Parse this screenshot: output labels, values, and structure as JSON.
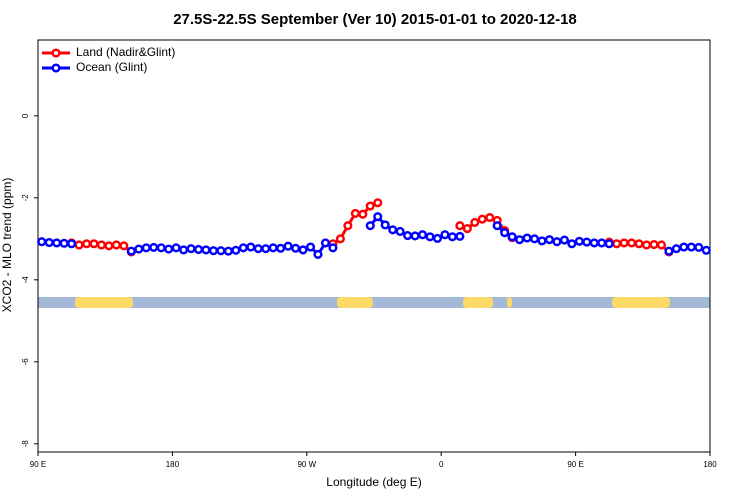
{
  "chart_data": {
    "type": "line",
    "title": "27.5S-22.5S September (Ver 10)   2015-01-01 to 2020-12-18",
    "x_label": "Longitude (deg E)",
    "y_label": "XCO2 - MLO trend (ppm)",
    "xlim": [
      90,
      540
    ],
    "ylim": [
      -8.2,
      1.85
    ],
    "xticks": [
      {
        "value": 90,
        "label": "90 E"
      },
      {
        "value": 180,
        "label": "180"
      },
      {
        "value": 270,
        "label": "90 W"
      },
      {
        "value": 360,
        "label": "0"
      },
      {
        "value": 450,
        "label": "90 E"
      },
      {
        "value": 540,
        "label": "180"
      }
    ],
    "yticks": [
      0,
      -2,
      -4,
      -6,
      -8
    ],
    "legend": "top-left",
    "x": [
      92.5,
      97.5,
      102.5,
      107.5,
      112.5,
      117.5,
      122.5,
      127.5,
      132.5,
      137.5,
      142.5,
      147.5,
      152.5,
      157.5,
      162.5,
      167.5,
      172.5,
      177.5,
      182.5,
      187.5,
      192.5,
      197.5,
      202.5,
      207.5,
      212.5,
      217.5,
      222.5,
      227.5,
      232.5,
      237.5,
      242.5,
      247.5,
      252.5,
      257.5,
      262.5,
      267.5,
      272.5,
      277.5,
      282.5,
      287.5,
      292.5,
      297.5,
      302.5,
      307.5,
      312.5,
      317.5,
      322.5,
      327.5,
      332.5,
      337.5,
      342.5,
      347.5,
      352.5,
      357.5,
      362.5,
      367.5,
      372.5,
      377.5,
      382.5,
      387.5,
      392.5,
      397.5,
      402.5,
      407.5,
      412.5,
      417.5,
      422.5,
      427.5,
      432.5,
      437.5,
      442.5,
      447.5,
      452.5,
      457.5,
      462.5,
      467.5,
      472.5,
      477.5,
      482.5,
      487.5,
      492.5,
      497.5,
      502.5,
      507.5,
      512.5,
      517.5,
      522.5,
      527.5,
      532.5,
      537.5
    ],
    "series": [
      {
        "name": "Land (Nadir&Glint)",
        "color": "#ff0000",
        "values": [
          null,
          null,
          null,
          null,
          -3.1,
          -3.15,
          -3.12,
          -3.12,
          -3.15,
          -3.17,
          -3.15,
          -3.17,
          -3.32,
          null,
          null,
          null,
          null,
          null,
          null,
          null,
          null,
          null,
          null,
          null,
          null,
          null,
          null,
          null,
          null,
          null,
          null,
          null,
          null,
          null,
          null,
          null,
          null,
          null,
          null,
          -3.12,
          -3.0,
          -2.68,
          -2.38,
          -2.4,
          -2.2,
          -2.12,
          null,
          null,
          null,
          null,
          null,
          null,
          null,
          null,
          null,
          null,
          -2.68,
          -2.75,
          -2.6,
          -2.52,
          -2.48,
          -2.55,
          -2.8,
          -2.97,
          null,
          null,
          null,
          null,
          null,
          null,
          null,
          null,
          null,
          null,
          null,
          null,
          -3.08,
          -3.12,
          -3.1,
          -3.1,
          -3.12,
          -3.15,
          -3.14,
          -3.15,
          -3.32,
          null,
          null,
          null,
          null,
          null
        ]
      },
      {
        "name": "Ocean (Glint)",
        "color": "#0000ff",
        "values": [
          -3.07,
          -3.09,
          -3.1,
          -3.11,
          -3.12,
          null,
          null,
          null,
          null,
          null,
          null,
          null,
          -3.3,
          -3.25,
          -3.22,
          -3.21,
          -3.22,
          -3.25,
          -3.22,
          -3.27,
          -3.24,
          -3.26,
          -3.27,
          -3.29,
          -3.29,
          -3.3,
          -3.28,
          -3.22,
          -3.2,
          -3.24,
          -3.24,
          -3.22,
          -3.23,
          -3.18,
          -3.23,
          -3.27,
          -3.2,
          -3.38,
          -3.1,
          -3.22,
          null,
          null,
          null,
          null,
          -2.68,
          -2.46,
          -2.66,
          -2.78,
          -2.82,
          -2.92,
          -2.93,
          -2.9,
          -2.95,
          -2.99,
          -2.9,
          -2.95,
          -2.94,
          null,
          null,
          null,
          null,
          -2.68,
          -2.85,
          -2.95,
          -3.02,
          -2.98,
          -3.0,
          -3.05,
          -3.02,
          -3.07,
          -3.03,
          -3.12,
          -3.06,
          -3.08,
          -3.1,
          -3.1,
          -3.12,
          null,
          null,
          null,
          null,
          null,
          null,
          null,
          -3.3,
          -3.24,
          -3.2,
          -3.2,
          -3.21,
          -3.28
        ]
      }
    ],
    "land_ranges": [
      [
        114.8,
        153.6
      ],
      [
        290.2,
        314.3
      ],
      [
        374.6,
        394.7
      ],
      [
        404.1,
        407.4
      ],
      [
        474.4,
        513.2
      ]
    ],
    "land_color": "#ffd966",
    "ocean_color": "#a4b8d8"
  }
}
